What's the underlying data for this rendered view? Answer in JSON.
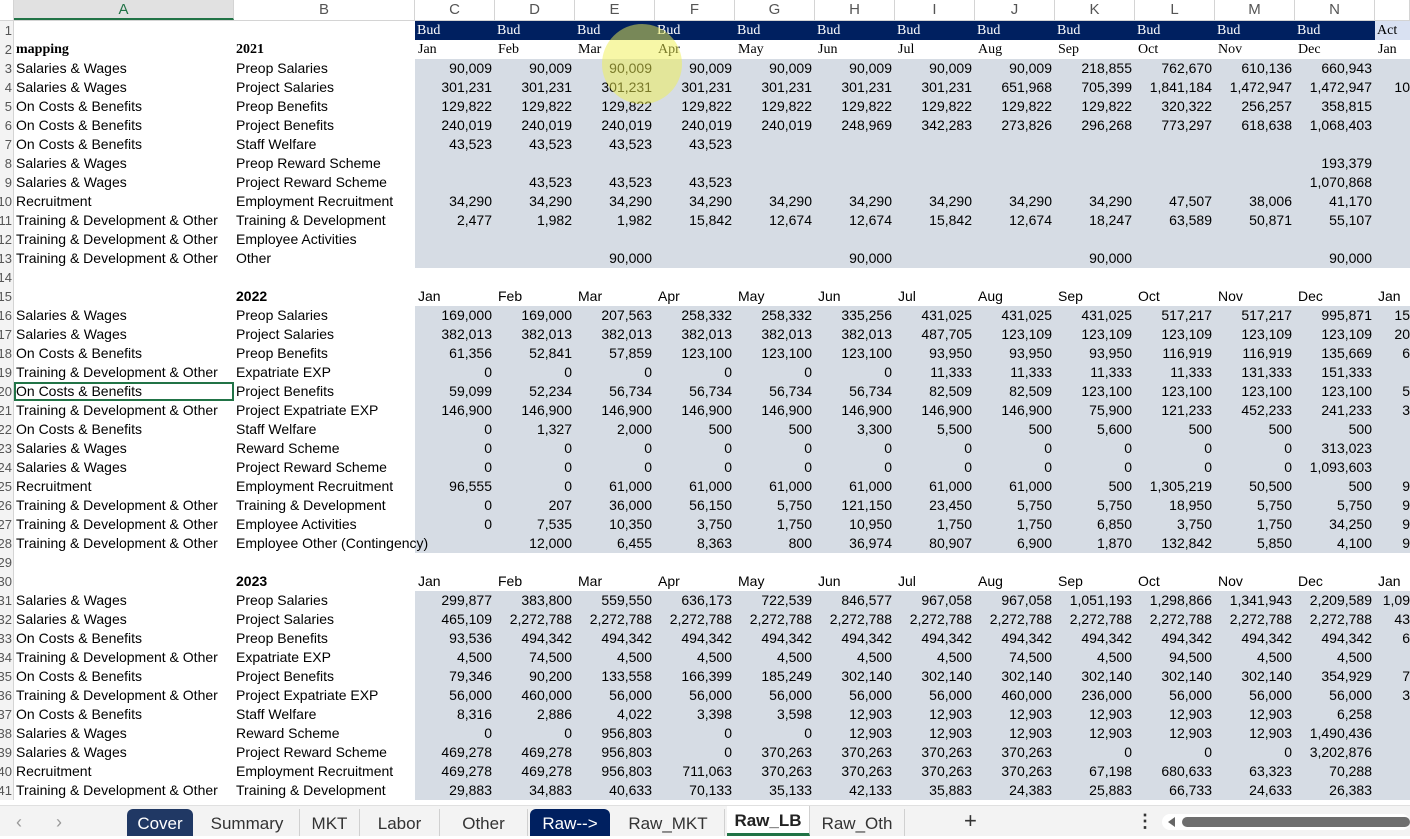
{
  "columns": [
    "A",
    "B",
    "C",
    "D",
    "E",
    "F",
    "G",
    "H",
    "I",
    "J",
    "K",
    "L",
    "M",
    "N",
    ""
  ],
  "header_row": {
    "bud": "Bud",
    "act": "Act"
  },
  "months": [
    "Jan",
    "Feb",
    "Mar",
    "Apr",
    "May",
    "Jun",
    "Jul",
    "Aug",
    "Sep",
    "Oct",
    "Nov",
    "Dec"
  ],
  "next_month": "Jan",
  "rows": [
    {
      "n": "1",
      "type": "bud"
    },
    {
      "n": "2",
      "type": "months",
      "a": "mapping",
      "b": "2021",
      "serif": true
    },
    {
      "n": "3",
      "a": "Salaries & Wages",
      "b": "Preop Salaries",
      "v": [
        "90,009",
        "90,009",
        "90,009",
        "90,009",
        "90,009",
        "90,009",
        "90,009",
        "90,009",
        "218,855",
        "762,670",
        "610,136",
        "660,943"
      ],
      "o": ""
    },
    {
      "n": "4",
      "a": "Salaries & Wages",
      "b": "Project Salaries",
      "v": [
        "301,231",
        "301,231",
        "301,231",
        "301,231",
        "301,231",
        "301,231",
        "301,231",
        "651,968",
        "705,399",
        "1,841,184",
        "1,472,947",
        "1,472,947"
      ],
      "o": "10"
    },
    {
      "n": "5",
      "a": "On Costs & Benefits",
      "b": "Preop Benefits",
      "v": [
        "129,822",
        "129,822",
        "129,822",
        "129,822",
        "129,822",
        "129,822",
        "129,822",
        "129,822",
        "129,822",
        "320,322",
        "256,257",
        "358,815"
      ],
      "o": ""
    },
    {
      "n": "6",
      "a": "On Costs & Benefits",
      "b": "Project Benefits",
      "v": [
        "240,019",
        "240,019",
        "240,019",
        "240,019",
        "240,019",
        "248,969",
        "342,283",
        "273,826",
        "296,268",
        "773,297",
        "618,638",
        "1,068,403"
      ],
      "o": ""
    },
    {
      "n": "7",
      "a": "On Costs & Benefits",
      "b": "Staff Welfare",
      "v": [
        "43,523",
        "43,523",
        "43,523",
        "43,523",
        "",
        "",
        "",
        "",
        "",
        "",
        "",
        ""
      ],
      "o": ""
    },
    {
      "n": "8",
      "a": "Salaries & Wages",
      "b": "Preop Reward Scheme",
      "v": [
        "",
        "",
        "",
        "",
        "",
        "",
        "",
        "",
        "",
        "",
        "",
        "193,379"
      ],
      "o": ""
    },
    {
      "n": "9",
      "a": "Salaries & Wages",
      "b": "Project Reward Scheme",
      "v": [
        "",
        "43,523",
        "43,523",
        "43,523",
        "",
        "",
        "",
        "",
        "",
        "",
        "",
        "1,070,868"
      ],
      "o": ""
    },
    {
      "n": "10",
      "a": "Recruitment",
      "b": "Employment Recruitment",
      "v": [
        "34,290",
        "34,290",
        "34,290",
        "34,290",
        "34,290",
        "34,290",
        "34,290",
        "34,290",
        "34,290",
        "47,507",
        "38,006",
        "41,170"
      ],
      "o": ""
    },
    {
      "n": "11",
      "a": "Training & Development & Other",
      "b": "Training & Development",
      "v": [
        "2,477",
        "1,982",
        "1,982",
        "15,842",
        "12,674",
        "12,674",
        "15,842",
        "12,674",
        "18,247",
        "63,589",
        "50,871",
        "55,107"
      ],
      "o": ""
    },
    {
      "n": "12",
      "a": "Training & Development & Other",
      "b": "Employee Activities",
      "v": [
        "",
        "",
        "",
        "",
        "",
        "",
        "",
        "",
        "",
        "",
        "",
        ""
      ],
      "o": ""
    },
    {
      "n": "13",
      "a": "Training & Development & Other",
      "b": "Other",
      "v": [
        "",
        "",
        "90,000",
        "",
        "",
        "90,000",
        "",
        "",
        "90,000",
        "",
        "",
        "90,000"
      ],
      "o": ""
    },
    {
      "n": "14",
      "type": "blank"
    },
    {
      "n": "15",
      "type": "months",
      "a": "",
      "b": "2022"
    },
    {
      "n": "16",
      "a": "Salaries & Wages",
      "b": "Preop Salaries",
      "v": [
        "169,000",
        "169,000",
        "207,563",
        "258,332",
        "258,332",
        "335,256",
        "431,025",
        "431,025",
        "431,025",
        "517,217",
        "517,217",
        "995,871"
      ],
      "o": "15"
    },
    {
      "n": "17",
      "a": "Salaries & Wages",
      "b": "Project Salaries",
      "v": [
        "382,013",
        "382,013",
        "382,013",
        "382,013",
        "382,013",
        "382,013",
        "487,705",
        "123,109",
        "123,109",
        "123,109",
        "123,109",
        "123,109"
      ],
      "o": "20"
    },
    {
      "n": "18",
      "a": "On Costs & Benefits",
      "b": "Preop Benefits",
      "v": [
        "61,356",
        "52,841",
        "57,859",
        "123,100",
        "123,100",
        "123,100",
        "93,950",
        "93,950",
        "93,950",
        "116,919",
        "116,919",
        "135,669"
      ],
      "o": "6"
    },
    {
      "n": "19",
      "a": "Training & Development & Other",
      "b": "Expatriate EXP",
      "v": [
        "0",
        "0",
        "0",
        "0",
        "0",
        "0",
        "11,333",
        "11,333",
        "11,333",
        "11,333",
        "131,333",
        "151,333"
      ],
      "o": ""
    },
    {
      "n": "20",
      "a": "On Costs & Benefits",
      "b": "Project Benefits",
      "v": [
        "59,099",
        "52,234",
        "56,734",
        "56,734",
        "56,734",
        "56,734",
        "82,509",
        "82,509",
        "123,100",
        "123,100",
        "123,100",
        "123,100"
      ],
      "o": "5",
      "selected": true
    },
    {
      "n": "21",
      "a": "Training & Development & Other",
      "b": "Project Expatriate EXP",
      "v": [
        "146,900",
        "146,900",
        "146,900",
        "146,900",
        "146,900",
        "146,900",
        "146,900",
        "146,900",
        "75,900",
        "121,233",
        "452,233",
        "241,233"
      ],
      "o": "3"
    },
    {
      "n": "22",
      "a": "On Costs & Benefits",
      "b": "Staff Welfare",
      "v": [
        "0",
        "1,327",
        "2,000",
        "500",
        "500",
        "3,300",
        "5,500",
        "500",
        "5,600",
        "500",
        "500",
        "500"
      ],
      "o": ""
    },
    {
      "n": "23",
      "a": "Salaries & Wages",
      "b": "Reward Scheme",
      "v": [
        "0",
        "0",
        "0",
        "0",
        "0",
        "0",
        "0",
        "0",
        "0",
        "0",
        "0",
        "313,023"
      ],
      "o": ""
    },
    {
      "n": "24",
      "a": "Salaries & Wages",
      "b": "Project Reward Scheme",
      "v": [
        "0",
        "0",
        "0",
        "0",
        "0",
        "0",
        "0",
        "0",
        "0",
        "0",
        "0",
        "1,093,603"
      ],
      "o": ""
    },
    {
      "n": "25",
      "a": "Recruitment",
      "b": "Employment Recruitment",
      "v": [
        "96,555",
        "0",
        "61,000",
        "61,000",
        "61,000",
        "61,000",
        "61,000",
        "61,000",
        "500",
        "1,305,219",
        "50,500",
        "500"
      ],
      "o": "9"
    },
    {
      "n": "26",
      "a": "Training & Development & Other",
      "b": "Training & Development",
      "v": [
        "0",
        "207",
        "36,000",
        "56,150",
        "5,750",
        "121,150",
        "23,450",
        "5,750",
        "5,750",
        "18,950",
        "5,750",
        "5,750"
      ],
      "o": "9"
    },
    {
      "n": "27",
      "a": "Training & Development & Other",
      "b": "Employee Activities",
      "v": [
        "0",
        "7,535",
        "10,350",
        "3,750",
        "1,750",
        "10,950",
        "1,750",
        "1,750",
        "6,850",
        "3,750",
        "1,750",
        "34,250"
      ],
      "o": "9"
    },
    {
      "n": "28",
      "a": "Training & Development & Other",
      "b": "Employee Other (Contingency)",
      "v": [
        "",
        "12,000",
        "6,455",
        "8,363",
        "800",
        "36,974",
        "80,907",
        "6,900",
        "1,870",
        "132,842",
        "5,850",
        "4,100"
      ],
      "o": "9"
    },
    {
      "n": "29",
      "type": "blank"
    },
    {
      "n": "30",
      "type": "months",
      "a": "",
      "b": "2023"
    },
    {
      "n": "31",
      "a": "Salaries & Wages",
      "b": "Preop Salaries",
      "v": [
        "299,877",
        "383,800",
        "559,550",
        "636,173",
        "722,539",
        "846,577",
        "967,058",
        "967,058",
        "1,051,193",
        "1,298,866",
        "1,341,943",
        "2,209,589"
      ],
      "o": "1,09"
    },
    {
      "n": "32",
      "a": "Salaries & Wages",
      "b": "Project Salaries",
      "v": [
        "465,109",
        "2,272,788",
        "2,272,788",
        "2,272,788",
        "2,272,788",
        "2,272,788",
        "2,272,788",
        "2,272,788",
        "2,272,788",
        "2,272,788",
        "2,272,788",
        "2,272,788"
      ],
      "o": "43"
    },
    {
      "n": "33",
      "a": "On Costs & Benefits",
      "b": "Preop Benefits",
      "v": [
        "93,536",
        "494,342",
        "494,342",
        "494,342",
        "494,342",
        "494,342",
        "494,342",
        "494,342",
        "494,342",
        "494,342",
        "494,342",
        "494,342"
      ],
      "o": "6"
    },
    {
      "n": "34",
      "a": "Training & Development & Other",
      "b": "Expatriate EXP",
      "v": [
        "4,500",
        "74,500",
        "4,500",
        "4,500",
        "4,500",
        "4,500",
        "4,500",
        "74,500",
        "4,500",
        "94,500",
        "4,500",
        "4,500"
      ],
      "o": ""
    },
    {
      "n": "35",
      "a": "On Costs & Benefits",
      "b": "Project Benefits",
      "v": [
        "79,346",
        "90,200",
        "133,558",
        "166,399",
        "185,249",
        "302,140",
        "302,140",
        "302,140",
        "302,140",
        "302,140",
        "302,140",
        "354,929"
      ],
      "o": "7"
    },
    {
      "n": "36",
      "a": "Training & Development & Other",
      "b": "Project Expatriate EXP",
      "v": [
        "56,000",
        "460,000",
        "56,000",
        "56,000",
        "56,000",
        "56,000",
        "56,000",
        "460,000",
        "236,000",
        "56,000",
        "56,000",
        "56,000"
      ],
      "o": "3"
    },
    {
      "n": "37",
      "a": "On Costs & Benefits",
      "b": "Staff Welfare",
      "v": [
        "8,316",
        "2,886",
        "4,022",
        "3,398",
        "3,598",
        "12,903",
        "12,903",
        "12,903",
        "12,903",
        "12,903",
        "12,903",
        "6,258"
      ],
      "o": ""
    },
    {
      "n": "38",
      "a": "Salaries & Wages",
      "b": "Reward Scheme",
      "v": [
        "0",
        "0",
        "956,803",
        "0",
        "0",
        "12,903",
        "12,903",
        "12,903",
        "12,903",
        "12,903",
        "12,903",
        "1,490,436"
      ],
      "o": ""
    },
    {
      "n": "39",
      "a": "Salaries & Wages",
      "b": "Project Reward Scheme",
      "v": [
        "469,278",
        "469,278",
        "956,803",
        "0",
        "370,263",
        "370,263",
        "370,263",
        "370,263",
        "0",
        "0",
        "0",
        "3,202,876"
      ],
      "o": ""
    },
    {
      "n": "40",
      "a": "Recruitment",
      "b": "Employment Recruitment",
      "v": [
        "469,278",
        "469,278",
        "956,803",
        "711,063",
        "370,263",
        "370,263",
        "370,263",
        "370,263",
        "67,198",
        "680,633",
        "63,323",
        "70,288"
      ],
      "o": ""
    },
    {
      "n": "41",
      "a": "Training & Development & Other",
      "b": "Training & Development",
      "v": [
        "29,883",
        "34,883",
        "40,633",
        "70,133",
        "35,133",
        "42,133",
        "35,883",
        "24,383",
        "25,883",
        "66,733",
        "24,633",
        "26,383"
      ],
      "o": ""
    }
  ],
  "tabs": [
    {
      "label": "Cover",
      "style": "dark"
    },
    {
      "label": "Summary",
      "style": ""
    },
    {
      "label": "MKT",
      "style": ""
    },
    {
      "label": "Labor",
      "style": ""
    },
    {
      "label": "Other",
      "style": ""
    },
    {
      "label": "Raw-->",
      "style": "navy"
    },
    {
      "label": "Raw_MKT",
      "style": ""
    },
    {
      "label": "Raw_LB",
      "style": "active"
    },
    {
      "label": "Raw_Oth",
      "style": ""
    }
  ],
  "tabbar": {
    "prev": "‹",
    "next": "›",
    "add": "+",
    "more": "⋮"
  },
  "colors": {
    "navy": "#002060",
    "fill": "#d6dce4",
    "accent": "#217346"
  }
}
